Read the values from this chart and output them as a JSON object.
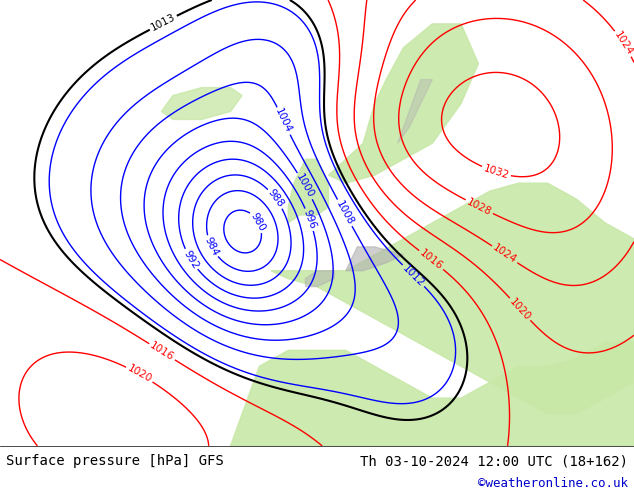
{
  "title_left": "Surface pressure [hPa] GFS",
  "title_right": "Th 03-10-2024 12:00 UTC (18+162)",
  "credit": "©weatheronline.co.uk",
  "bg_map_color": "#d8eec8",
  "bg_sea_color": "#e8e8e8",
  "land_color": "#c8e8a8",
  "fig_width": 6.34,
  "fig_height": 4.9,
  "dpi": 100,
  "bottom_bar_color": "#f0f0f0",
  "title_fontsize": 10,
  "credit_color": "#0000cc",
  "text_color": "#000000"
}
